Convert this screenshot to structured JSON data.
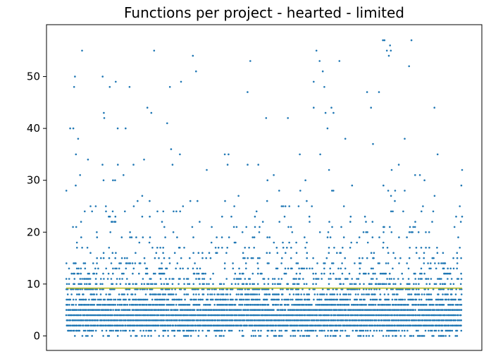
{
  "chart_data": {
    "type": "scatter",
    "title": "Functions per project - hearted - limited",
    "xlabel": "",
    "ylabel": "",
    "x_tick_labels": "none",
    "ylim": [
      -2.8,
      60
    ],
    "y_ticks": [
      0,
      10,
      20,
      30,
      40,
      50
    ],
    "y_tick_labels": [
      "0",
      "10",
      "20",
      "30",
      "40",
      "50"
    ],
    "x_range": [
      0,
      1000
    ],
    "grid": false,
    "legend": "none",
    "point_color": "#1f77b4",
    "mean_line": {
      "value": 9.2,
      "color": "#bcbd22",
      "x_from": 0,
      "x_to": 1000
    },
    "y_level_density": [
      {
        "y": 0,
        "share": 0.3
      },
      {
        "y": 1,
        "share": 0.55
      },
      {
        "y": 2,
        "share": 1.0
      },
      {
        "y": 3,
        "share": 1.0
      },
      {
        "y": 4,
        "share": 1.0
      },
      {
        "y": 5,
        "share": 0.95
      },
      {
        "y": 6,
        "share": 0.85
      },
      {
        "y": 7,
        "share": 0.75
      },
      {
        "y": 8,
        "share": 0.55
      },
      {
        "y": 9,
        "share": 0.5
      },
      {
        "y": 10,
        "share": 0.45
      },
      {
        "y": 11,
        "share": 0.35
      },
      {
        "y": 12,
        "share": 0.28
      },
      {
        "y": 13,
        "share": 0.22
      },
      {
        "y": 14,
        "share": 0.18
      },
      {
        "y": 15,
        "share": 0.15
      },
      {
        "y": 16,
        "share": 0.12
      },
      {
        "y": 17,
        "share": 0.1
      },
      {
        "y": 18,
        "share": 0.08
      },
      {
        "y": 19,
        "share": 0.07
      },
      {
        "y": 20,
        "share": 0.06
      },
      {
        "y": 21,
        "share": 0.05
      },
      {
        "y": 22,
        "share": 0.045
      },
      {
        "y": 23,
        "share": 0.04
      },
      {
        "y": 24,
        "share": 0.04
      },
      {
        "y": 25,
        "share": 0.035
      },
      {
        "y": 26,
        "share": 0.035
      },
      {
        "y": 27,
        "share": 0.02
      },
      {
        "y": 28,
        "share": 0.02
      },
      {
        "y": 29,
        "share": 0.015
      },
      {
        "y": 30,
        "share": 0.015
      },
      {
        "y": 31,
        "share": 0.015
      },
      {
        "y": 32,
        "share": 0.015
      },
      {
        "y": 33,
        "share": 0.012
      },
      {
        "y": 34,
        "share": 0.012
      },
      {
        "y": 35,
        "share": 0.01
      }
    ],
    "sparse_points": [
      {
        "x": 10,
        "y": 40
      },
      {
        "x": 20,
        "y": 48
      },
      {
        "x": 22,
        "y": 50
      },
      {
        "x": 40,
        "y": 55
      },
      {
        "x": 18,
        "y": 40
      },
      {
        "x": 24,
        "y": 29
      },
      {
        "x": 30,
        "y": 38
      },
      {
        "x": 35,
        "y": 31
      },
      {
        "x": 55,
        "y": 34
      },
      {
        "x": 92,
        "y": 50
      },
      {
        "x": 95,
        "y": 43
      },
      {
        "x": 96,
        "y": 42
      },
      {
        "x": 110,
        "y": 48
      },
      {
        "x": 125,
        "y": 49
      },
      {
        "x": 130,
        "y": 40
      },
      {
        "x": 150,
        "y": 40
      },
      {
        "x": 160,
        "y": 48
      },
      {
        "x": 170,
        "y": 33
      },
      {
        "x": 205,
        "y": 44
      },
      {
        "x": 215,
        "y": 43
      },
      {
        "x": 222,
        "y": 55
      },
      {
        "x": 255,
        "y": 41
      },
      {
        "x": 262,
        "y": 48
      },
      {
        "x": 265,
        "y": 36
      },
      {
        "x": 290,
        "y": 49
      },
      {
        "x": 320,
        "y": 54
      },
      {
        "x": 328,
        "y": 51
      },
      {
        "x": 355,
        "y": 32
      },
      {
        "x": 410,
        "y": 35
      },
      {
        "x": 458,
        "y": 47
      },
      {
        "x": 465,
        "y": 53
      },
      {
        "x": 505,
        "y": 42
      },
      {
        "x": 560,
        "y": 42
      },
      {
        "x": 590,
        "y": 35
      },
      {
        "x": 625,
        "y": 44
      },
      {
        "x": 625,
        "y": 49
      },
      {
        "x": 632,
        "y": 55
      },
      {
        "x": 640,
        "y": 53
      },
      {
        "x": 648,
        "y": 51
      },
      {
        "x": 652,
        "y": 48
      },
      {
        "x": 655,
        "y": 43
      },
      {
        "x": 660,
        "y": 40
      },
      {
        "x": 670,
        "y": 44
      },
      {
        "x": 675,
        "y": 43
      },
      {
        "x": 690,
        "y": 53
      },
      {
        "x": 705,
        "y": 38
      },
      {
        "x": 722,
        "y": 29
      },
      {
        "x": 760,
        "y": 47
      },
      {
        "x": 770,
        "y": 44
      },
      {
        "x": 775,
        "y": 37
      },
      {
        "x": 790,
        "y": 47
      },
      {
        "x": 800,
        "y": 57
      },
      {
        "x": 804,
        "y": 57
      },
      {
        "x": 810,
        "y": 55
      },
      {
        "x": 815,
        "y": 54
      },
      {
        "x": 818,
        "y": 56
      },
      {
        "x": 820,
        "y": 55
      },
      {
        "x": 822,
        "y": 32
      },
      {
        "x": 830,
        "y": 26
      },
      {
        "x": 840,
        "y": 33
      },
      {
        "x": 855,
        "y": 38
      },
      {
        "x": 866,
        "y": 52
      },
      {
        "x": 872,
        "y": 57
      },
      {
        "x": 905,
        "y": 30
      },
      {
        "x": 930,
        "y": 44
      },
      {
        "x": 938,
        "y": 35
      },
      {
        "x": 1000,
        "y": 32
      },
      {
        "x": 1000,
        "y": 23
      }
    ]
  }
}
